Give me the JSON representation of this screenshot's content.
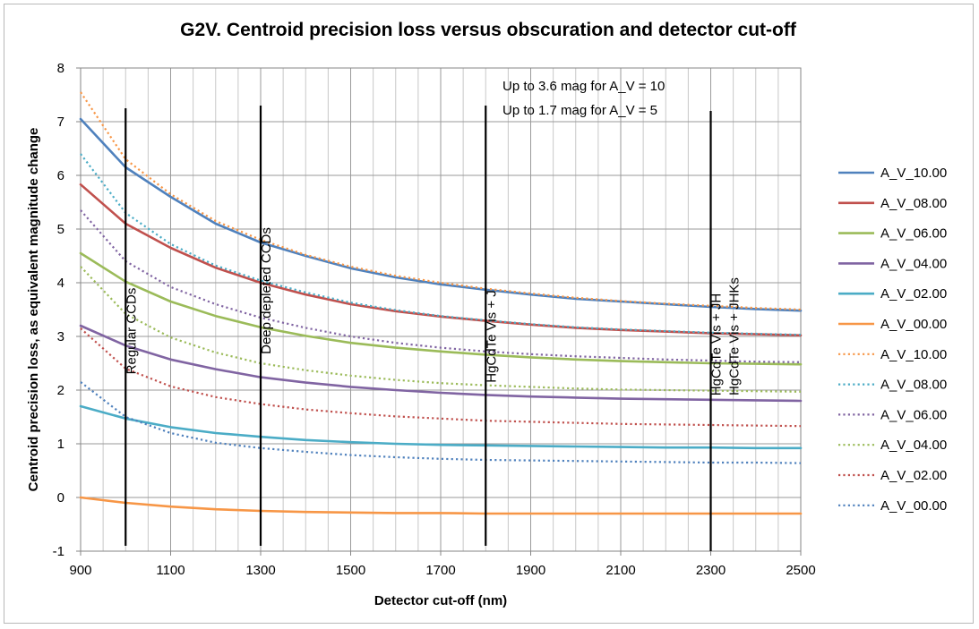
{
  "chart_data": {
    "type": "line",
    "title": "G2V. Centroid precision loss versus obscuration and  detector cut-off",
    "xlabel": "Detector cut-off (nm)",
    "ylabel": "Centroid precision loss, as equivalent magnitude change",
    "xlim": [
      900,
      2500
    ],
    "ylim": [
      -1,
      8
    ],
    "x_major_ticks": [
      900,
      1100,
      1300,
      1500,
      1700,
      1900,
      2100,
      2300,
      2500
    ],
    "x_minor_step": 50,
    "y_ticks": [
      -1,
      0,
      1,
      2,
      3,
      4,
      5,
      6,
      7,
      8
    ],
    "grid": true,
    "legend_position": "right",
    "x": [
      900,
      1000,
      1100,
      1200,
      1300,
      1400,
      1500,
      1600,
      1700,
      1800,
      1900,
      2000,
      2100,
      2200,
      2300,
      2400,
      2500
    ],
    "series": [
      {
        "name": "A_V_10.00",
        "style": "solid",
        "color": "#4f81bd",
        "values": [
          7.05,
          6.15,
          5.6,
          5.1,
          4.75,
          4.5,
          4.27,
          4.1,
          3.97,
          3.87,
          3.78,
          3.7,
          3.65,
          3.6,
          3.55,
          3.51,
          3.48
        ]
      },
      {
        "name": "A_V_08.00",
        "style": "solid",
        "color": "#c0504d",
        "values": [
          5.83,
          5.1,
          4.65,
          4.28,
          4.0,
          3.78,
          3.6,
          3.47,
          3.37,
          3.29,
          3.22,
          3.16,
          3.12,
          3.09,
          3.06,
          3.04,
          3.02
        ]
      },
      {
        "name": "A_V_06.00",
        "style": "solid",
        "color": "#9bbb59",
        "values": [
          4.55,
          4.02,
          3.65,
          3.38,
          3.17,
          3.01,
          2.88,
          2.79,
          2.72,
          2.66,
          2.61,
          2.57,
          2.54,
          2.52,
          2.5,
          2.49,
          2.48
        ]
      },
      {
        "name": "A_V_04.00",
        "style": "solid",
        "color": "#8064a2",
        "values": [
          3.2,
          2.83,
          2.57,
          2.39,
          2.24,
          2.14,
          2.06,
          2.0,
          1.95,
          1.91,
          1.88,
          1.86,
          1.84,
          1.83,
          1.82,
          1.81,
          1.8
        ]
      },
      {
        "name": "A_V_02.00",
        "style": "solid",
        "color": "#4bacc6",
        "values": [
          1.7,
          1.47,
          1.31,
          1.2,
          1.13,
          1.07,
          1.03,
          1.0,
          0.98,
          0.97,
          0.96,
          0.95,
          0.94,
          0.93,
          0.93,
          0.92,
          0.92
        ]
      },
      {
        "name": "A_V_00.00",
        "style": "solid",
        "color": "#f79646",
        "values": [
          0.0,
          -0.1,
          -0.17,
          -0.22,
          -0.25,
          -0.27,
          -0.28,
          -0.29,
          -0.29,
          -0.3,
          -0.3,
          -0.3,
          -0.3,
          -0.3,
          -0.3,
          -0.3,
          -0.3
        ]
      },
      {
        "name": "A_V_10.00",
        "style": "dotted",
        "color": "#f79646",
        "values": [
          7.55,
          6.3,
          5.65,
          5.15,
          4.8,
          4.52,
          4.3,
          4.13,
          4.0,
          3.89,
          3.8,
          3.72,
          3.66,
          3.61,
          3.57,
          3.53,
          3.5
        ]
      },
      {
        "name": "A_V_08.00",
        "style": "dotted",
        "color": "#4bacc6",
        "values": [
          6.4,
          5.3,
          4.72,
          4.32,
          4.04,
          3.82,
          3.63,
          3.49,
          3.38,
          3.3,
          3.23,
          3.17,
          3.13,
          3.1,
          3.07,
          3.05,
          3.03
        ]
      },
      {
        "name": "A_V_06.00",
        "style": "dotted",
        "color": "#8064a2",
        "values": [
          5.35,
          4.4,
          3.92,
          3.6,
          3.35,
          3.16,
          3.0,
          2.88,
          2.79,
          2.72,
          2.67,
          2.63,
          2.6,
          2.57,
          2.55,
          2.53,
          2.52
        ]
      },
      {
        "name": "A_V_04.00",
        "style": "dotted",
        "color": "#9bbb59",
        "values": [
          4.3,
          3.42,
          2.98,
          2.7,
          2.5,
          2.37,
          2.27,
          2.19,
          2.13,
          2.09,
          2.06,
          2.03,
          2.01,
          2.0,
          1.99,
          1.98,
          1.97
        ]
      },
      {
        "name": "A_V_02.00",
        "style": "dotted",
        "color": "#c0504d",
        "values": [
          3.15,
          2.4,
          2.07,
          1.87,
          1.74,
          1.64,
          1.57,
          1.51,
          1.47,
          1.43,
          1.41,
          1.39,
          1.37,
          1.36,
          1.35,
          1.34,
          1.33
        ]
      },
      {
        "name": "A_V_00.00",
        "style": "dotted",
        "color": "#4f81bd",
        "values": [
          2.15,
          1.5,
          1.2,
          1.02,
          0.92,
          0.85,
          0.79,
          0.75,
          0.72,
          0.7,
          0.69,
          0.68,
          0.67,
          0.66,
          0.65,
          0.65,
          0.64
        ]
      }
    ],
    "vertical_markers": [
      {
        "x": 1000,
        "y_range": [
          -0.9,
          7.25
        ],
        "label": "Regular CCDs",
        "label_side": "left",
        "label_center_y": 3.1
      },
      {
        "x": 1300,
        "y_range": [
          -0.9,
          7.3
        ],
        "label": "Deep depleted CCDs",
        "label_side": "left",
        "label_center_y": 3.85
      },
      {
        "x": 1800,
        "y_range": [
          -0.9,
          7.3
        ],
        "label": "HgCdTe Vis + J",
        "label_side": "left",
        "label_center_y": 3.0
      },
      {
        "x": 2300,
        "y_range": [
          -1.0,
          7.2
        ],
        "label": "HgCdTe Vis + JH",
        "label_side": "left",
        "label_center_y": 2.85
      },
      {
        "x": 2300,
        "y_range": [
          -1.0,
          7.2
        ],
        "label": "HgCdTe Vis + JHKs",
        "label_side": "right",
        "label_center_y": 3.0
      }
    ],
    "annotations": [
      "Up to 3.6 mag for A_V = 10",
      "Up to 1.7 mag for A_V = 5"
    ]
  }
}
